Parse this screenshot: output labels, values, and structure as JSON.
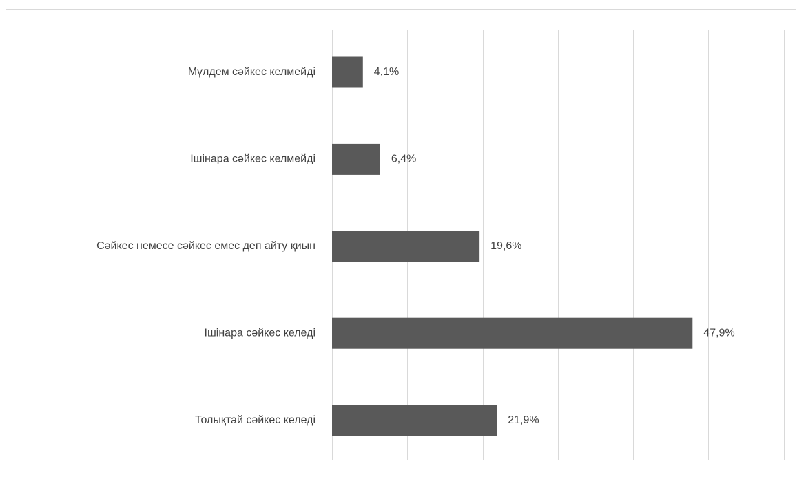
{
  "chart_data": {
    "type": "bar",
    "orientation": "horizontal",
    "title": "",
    "xlabel": "",
    "ylabel": "",
    "categories": [
      "Мүлдем сәйкес келмейді",
      "Ішінара сәйкес келмейді",
      "Сәйкес немесе сәйкес емес деп айту қиын",
      "Ішінара сәйкес  келеді",
      "Толықтай сәйкес келеді"
    ],
    "values": [
      4.1,
      6.4,
      19.6,
      47.9,
      21.9
    ],
    "value_labels": [
      "4,1%",
      "6,4%",
      "19,6%",
      "47,9%",
      "21,9%"
    ],
    "xlim": [
      0,
      60
    ],
    "grid": true,
    "legend": "none",
    "colors": {
      "bar": "#595959",
      "grid": "#d9d9d9",
      "text": "#404040",
      "border": "#d9d9d9"
    }
  }
}
